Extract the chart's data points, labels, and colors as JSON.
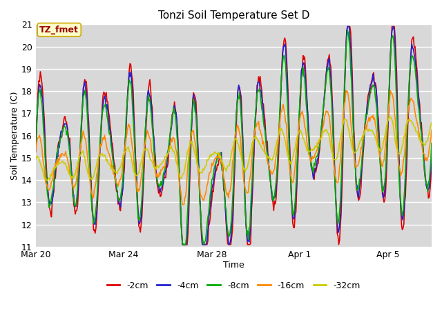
{
  "title": "Tonzi Soil Temperature Set D",
  "xlabel": "Time",
  "ylabel": "Soil Temperature (C)",
  "ylim": [
    11.0,
    21.0
  ],
  "yticks": [
    11.0,
    12.0,
    13.0,
    14.0,
    15.0,
    16.0,
    17.0,
    18.0,
    19.0,
    20.0,
    21.0
  ],
  "x_tick_labels": [
    "Mar 20",
    "Mar 24",
    "Mar 28",
    "Apr 1",
    "Apr 5"
  ],
  "x_tick_positions": [
    0,
    4,
    8,
    12,
    16
  ],
  "xlim": [
    0,
    18
  ],
  "annotation_text": "TZ_fmet",
  "annotation_color": "#990000",
  "annotation_bg": "#ffffcc",
  "annotation_border": "#ccaa00",
  "series_colors": {
    "-2cm": "#dd0000",
    "-4cm": "#2222cc",
    "-8cm": "#00aa00",
    "-16cm": "#ff8800",
    "-32cm": "#cccc00"
  },
  "series_lw": 1.2,
  "fig_bg": "#ffffff",
  "plot_bg": "#d8d8d8",
  "grid_color": "#ffffff",
  "title_fontsize": 11,
  "tick_fontsize": 9,
  "label_fontsize": 9,
  "legend_fontsize": 9
}
